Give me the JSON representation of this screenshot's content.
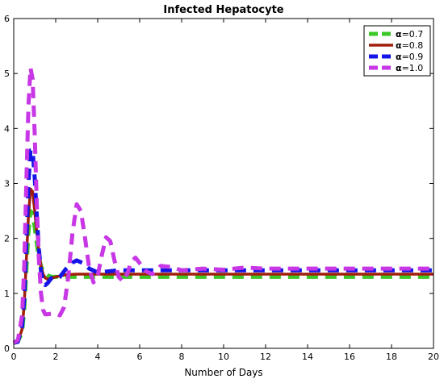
{
  "chart_data": {
    "type": "line",
    "title": "Infected Hepatocyte",
    "xlabel": "Number of Days",
    "ylabel": "",
    "xlim": [
      0,
      20
    ],
    "ylim": [
      0,
      6
    ],
    "xticks": [
      0,
      2,
      4,
      6,
      8,
      10,
      12,
      14,
      16,
      18,
      20
    ],
    "yticks": [
      0,
      1,
      2,
      3,
      4,
      5,
      6
    ],
    "grid": false,
    "legend_position": "top-right",
    "series": [
      {
        "name": "α=0.7",
        "legend_symbol": "α",
        "legend_value": "=0.7",
        "color": "#3cc828",
        "dash": "dashed",
        "x": [
          0,
          0.2,
          0.4,
          0.5,
          0.6,
          0.7,
          0.8,
          0.9,
          1.0,
          1.1,
          1.2,
          1.3,
          1.4,
          1.6,
          1.8,
          2.0,
          2.5,
          3,
          4,
          5,
          6,
          8,
          10,
          12,
          14,
          16,
          18,
          20
        ],
        "y": [
          0.1,
          0.12,
          0.3,
          0.7,
          1.4,
          2.1,
          2.5,
          2.45,
          2.2,
          1.9,
          1.65,
          1.5,
          1.4,
          1.33,
          1.3,
          1.3,
          1.3,
          1.3,
          1.3,
          1.3,
          1.3,
          1.3,
          1.3,
          1.3,
          1.3,
          1.3,
          1.3,
          1.3
        ]
      },
      {
        "name": "α=0.8",
        "legend_symbol": "α",
        "legend_value": "=0.8",
        "color": "#a01e0a",
        "dash": "solid",
        "x": [
          0,
          0.2,
          0.4,
          0.5,
          0.6,
          0.7,
          0.8,
          0.9,
          1.0,
          1.1,
          1.2,
          1.3,
          1.4,
          1.5,
          1.6,
          1.8,
          2.0,
          2.5,
          3,
          4,
          5,
          6,
          8,
          10,
          12,
          14,
          16,
          18,
          20
        ],
        "y": [
          0.1,
          0.12,
          0.35,
          0.8,
          1.6,
          2.4,
          2.9,
          2.85,
          2.5,
          2.1,
          1.75,
          1.5,
          1.35,
          1.28,
          1.26,
          1.27,
          1.3,
          1.34,
          1.35,
          1.35,
          1.35,
          1.35,
          1.35,
          1.35,
          1.35,
          1.35,
          1.35,
          1.35,
          1.35
        ]
      },
      {
        "name": "α=0.9",
        "legend_symbol": "α",
        "legend_value": "=0.9",
        "color": "#1414e6",
        "dash": "dashed",
        "x": [
          0,
          0.2,
          0.4,
          0.5,
          0.6,
          0.7,
          0.8,
          0.9,
          1.0,
          1.1,
          1.2,
          1.3,
          1.4,
          1.5,
          1.6,
          1.8,
          2.0,
          2.2,
          2.5,
          2.8,
          3.0,
          3.3,
          3.6,
          4.0,
          4.5,
          5,
          6,
          8,
          10,
          12,
          14,
          16,
          18,
          20
        ],
        "y": [
          0.1,
          0.12,
          0.4,
          0.9,
          1.9,
          3.0,
          3.6,
          3.6,
          3.1,
          2.4,
          1.8,
          1.4,
          1.2,
          1.15,
          1.18,
          1.28,
          1.3,
          1.3,
          1.45,
          1.56,
          1.6,
          1.55,
          1.45,
          1.38,
          1.4,
          1.42,
          1.42,
          1.42,
          1.42,
          1.42,
          1.42,
          1.42,
          1.42,
          1.42
        ]
      },
      {
        "name": "α=1.0",
        "legend_symbol": "α",
        "legend_value": "=1.0",
        "color": "#c837e6",
        "dash": "dashed",
        "x": [
          0,
          0.2,
          0.4,
          0.5,
          0.6,
          0.7,
          0.8,
          0.9,
          1.0,
          1.1,
          1.2,
          1.3,
          1.4,
          1.5,
          1.6,
          1.8,
          2.0,
          2.2,
          2.4,
          2.6,
          2.8,
          3.0,
          3.2,
          3.4,
          3.6,
          3.8,
          4.0,
          4.2,
          4.4,
          4.6,
          4.8,
          5.0,
          5.2,
          5.4,
          5.6,
          5.8,
          6.0,
          6.3,
          6.6,
          7.0,
          7.5,
          8,
          9,
          10,
          11,
          12,
          13,
          14,
          15,
          16,
          17,
          18,
          19,
          20
        ],
        "y": [
          0.1,
          0.15,
          0.6,
          1.5,
          3.0,
          4.4,
          5.1,
          4.9,
          3.9,
          2.6,
          1.6,
          1.0,
          0.7,
          0.62,
          0.62,
          0.63,
          0.63,
          0.6,
          0.75,
          1.3,
          2.1,
          2.62,
          2.5,
          2.0,
          1.45,
          1.2,
          1.32,
          1.7,
          2.02,
          1.95,
          1.6,
          1.3,
          1.22,
          1.35,
          1.58,
          1.65,
          1.55,
          1.4,
          1.35,
          1.5,
          1.48,
          1.42,
          1.45,
          1.43,
          1.47,
          1.45,
          1.45,
          1.45,
          1.45,
          1.45,
          1.45,
          1.45,
          1.45,
          1.45
        ]
      }
    ]
  }
}
